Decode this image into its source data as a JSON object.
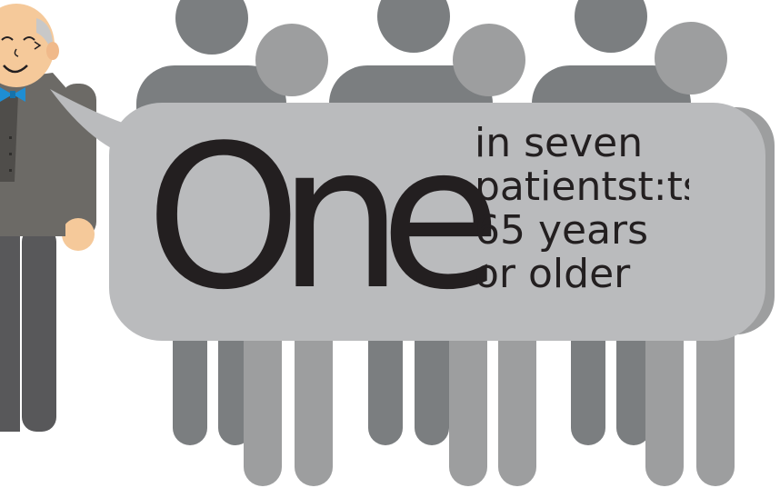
{
  "headline": {
    "big_word": "One",
    "lines": [
      "in seven",
      "patientst:ts",
      "65 years",
      "or older"
    ]
  },
  "colors": {
    "figure_dark": "#7b7e80",
    "figure_light": "#9d9e9f",
    "bubble": "#babbbd",
    "text": "#231f20",
    "suit": "#6c6a66",
    "skin": "#f5c99a",
    "bowtie": "#1f8ed3"
  },
  "icons": {
    "people": "person-silhouette-icon",
    "speaker": "elderly-man-icon"
  }
}
